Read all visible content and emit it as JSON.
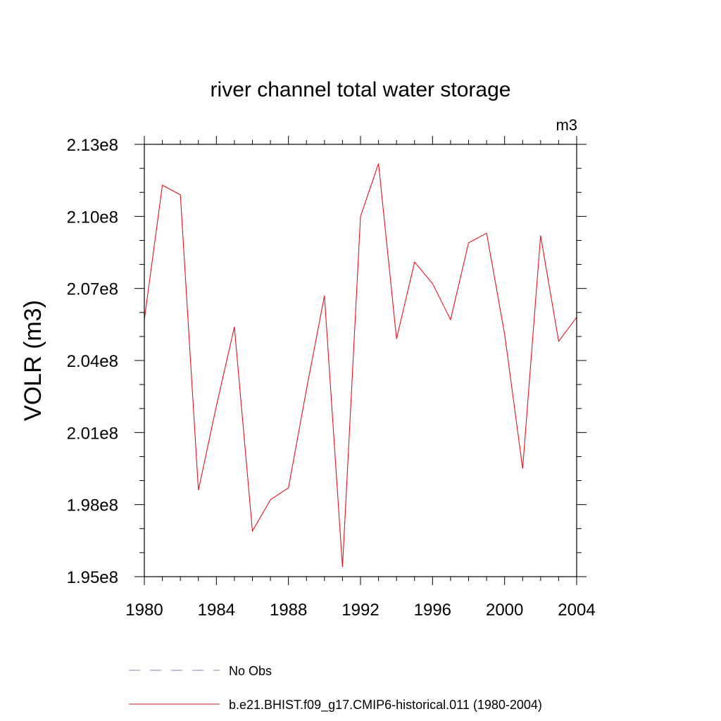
{
  "chart_data": {
    "type": "line",
    "title": "river channel total water storage",
    "units": "m3",
    "ylabel": "VOLR  (m3)",
    "xlabel": "",
    "xlim": [
      1980,
      2004
    ],
    "ylim": [
      195000000,
      213000000
    ],
    "x_ticks": [
      1980,
      1984,
      1988,
      1992,
      1996,
      2000,
      2004
    ],
    "x_tick_labels": [
      "1980",
      "1984",
      "1988",
      "1992",
      "1996",
      "2000",
      "2004"
    ],
    "y_ticks": [
      195000000,
      198000000,
      201000000,
      204000000,
      207000000,
      210000000,
      213000000
    ],
    "y_tick_labels": [
      "1.95e8",
      "1.98e8",
      "2.01e8",
      "2.04e8",
      "2.07e8",
      "2.10e8",
      "2.13e8"
    ],
    "grid": false,
    "legend_position": "bottom",
    "series": [
      {
        "name": "b.e21.BHIST.f09_g17.CMIP6-historical.011 (1980-2004)",
        "color": "#e8101a",
        "style": "solid",
        "x": [
          1980,
          1981,
          1982,
          1983,
          1984,
          1985,
          1986,
          1987,
          1988,
          1989,
          1990,
          1991,
          1992,
          1993,
          1994,
          1995,
          1996,
          1997,
          1998,
          1999,
          2000,
          2001,
          2002,
          2003,
          2004
        ],
        "values": [
          205700000,
          211300000,
          210900000,
          198600000,
          202100000,
          205400000,
          196900000,
          198200000,
          198700000,
          202800000,
          206700000,
          195400000,
          210000000,
          212200000,
          204900000,
          208100000,
          207200000,
          205700000,
          208900000,
          209300000,
          205100000,
          199500000,
          209200000,
          204800000,
          205800000
        ]
      }
    ],
    "legend": [
      {
        "label": "No Obs",
        "color": "#8a86c4",
        "style": "dashed"
      },
      {
        "label": "b.e21.BHIST.f09_g17.CMIP6-historical.011 (1980-2004)",
        "color": "#e8101a",
        "style": "solid"
      }
    ]
  }
}
